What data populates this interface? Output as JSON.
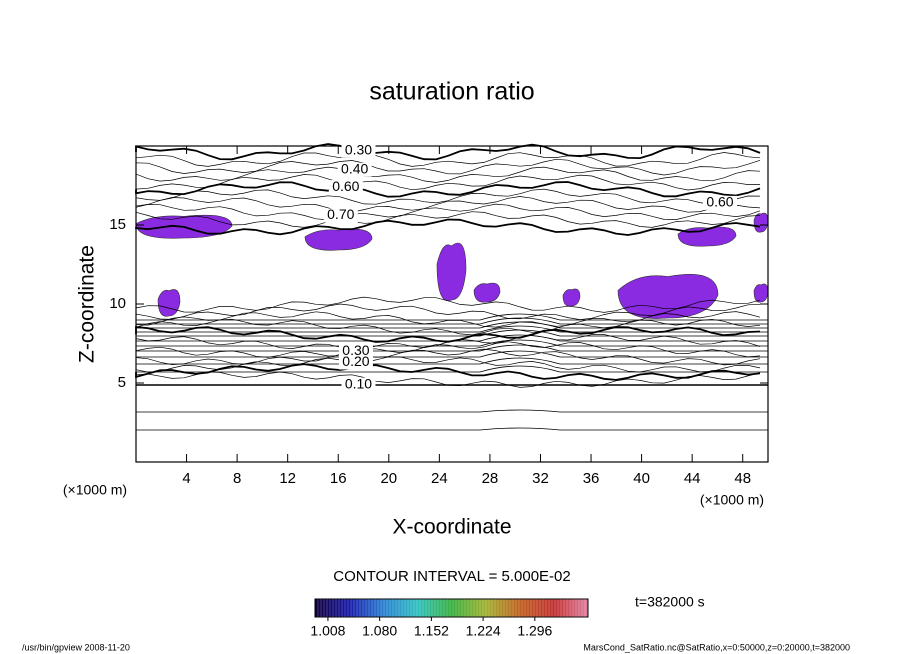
{
  "chart_data": {
    "type": "contour",
    "title": "saturation ratio",
    "x_label": "X-coordinate",
    "y_label": "Z-coordinate",
    "x_unit": "(×1000 m)",
    "y_unit": "(×1000 m)",
    "xlim": [
      0,
      50
    ],
    "ylim": [
      0,
      20
    ],
    "xticks": [
      4,
      8,
      12,
      16,
      20,
      24,
      28,
      32,
      36,
      40,
      44,
      48
    ],
    "yticks": [
      5,
      10,
      15
    ],
    "contour_interval_label": "CONTOUR INTERVAL = 5.000E-02",
    "contour_labels": [
      {
        "value": 0.3,
        "label": "0.30",
        "x": 17.6,
        "z": 19.7
      },
      {
        "value": 0.4,
        "label": "0.40",
        "x": 17.3,
        "z": 18.5
      },
      {
        "value": 0.6,
        "label": "0.60",
        "x": 16.6,
        "z": 17.4
      },
      {
        "value": 0.7,
        "label": "0.70",
        "x": 16.2,
        "z": 15.6
      },
      {
        "value": 0.6,
        "label": "0.60",
        "x": 46.2,
        "z": 16.4
      },
      {
        "value": 0.3,
        "label": "0.30",
        "x": 17.4,
        "z": 7.0
      },
      {
        "value": 0.2,
        "label": "0.20",
        "x": 17.4,
        "z": 6.3
      },
      {
        "value": 0.1,
        "label": "0.10",
        "x": 17.6,
        "z": 4.9
      }
    ],
    "colorbar": {
      "clim": [
        0.99,
        1.37
      ],
      "ticks": [
        1.008,
        {
          "value": 1.08,
          "label": "1.080"
        },
        1.152,
        1.224,
        1.296
      ],
      "colors": [
        "#10003a",
        "#1a1aa8",
        "#2a7fd0",
        "#30c0c0",
        "#38b040",
        "#a0b030",
        "#c06020",
        "#c03030",
        "#e080a0"
      ]
    },
    "shade_color": "#8a2be2",
    "time_label": "t=382000 s",
    "footer_left": "/usr/bin/gpview   2008-11-20",
    "footer_right": "MarsCond_SatRatio.nc@SatRatio,x=0:50000,z=0:20000,t=382000"
  }
}
